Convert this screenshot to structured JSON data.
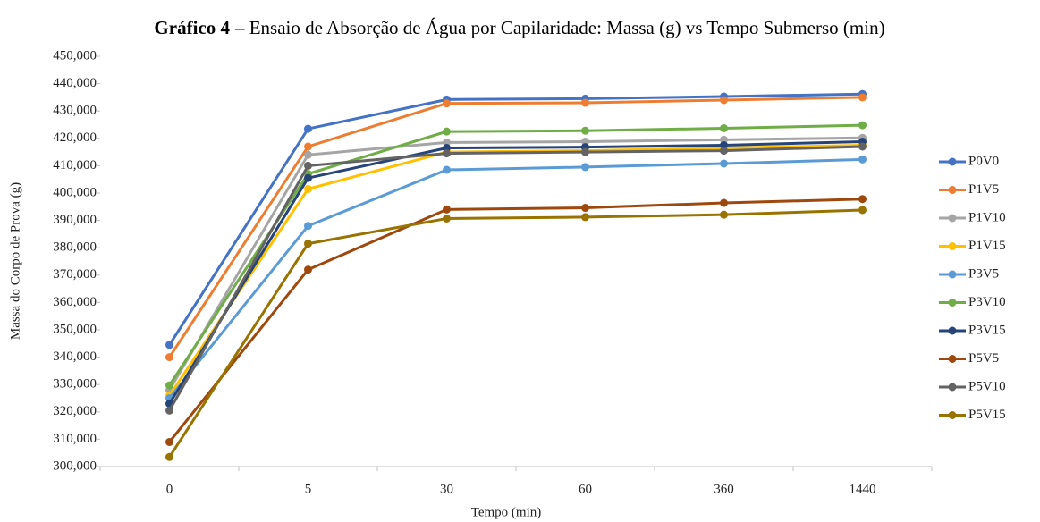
{
  "chart_data": {
    "type": "line",
    "title_number": "Gráfico 4",
    "title": "– Ensaio de Absorção de Água por Capilaridade: Massa (g) vs Tempo Submerso (min)",
    "x_label": "Tempo (min)",
    "y_label": "Massa do Corpo de Prova (g)",
    "categories": [
      "0",
      "5",
      "30",
      "60",
      "360",
      "1440"
    ],
    "ylim": [
      300,
      450
    ],
    "yticks": [
      {
        "value": 300,
        "label": "300,000"
      },
      {
        "value": 310,
        "label": "310,000"
      },
      {
        "value": 320,
        "label": "320,000"
      },
      {
        "value": 330,
        "label": "330,000"
      },
      {
        "value": 340,
        "label": "340,000"
      },
      {
        "value": 350,
        "label": "350,000"
      },
      {
        "value": 360,
        "label": "360,000"
      },
      {
        "value": 370,
        "label": "370,000"
      },
      {
        "value": 380,
        "label": "380,000"
      },
      {
        "value": 390,
        "label": "390,000"
      },
      {
        "value": 400,
        "label": "400,000"
      },
      {
        "value": 410,
        "label": "410,000"
      },
      {
        "value": 420,
        "label": "420,000"
      },
      {
        "value": 430,
        "label": "430,000"
      },
      {
        "value": 440,
        "label": "440,000"
      },
      {
        "value": 450,
        "label": "450,000"
      }
    ],
    "legend": "right",
    "series": [
      {
        "name": "P0V0",
        "color": "#4472c4",
        "values": [
          344.5,
          423.5,
          434.2,
          434.5,
          435.3,
          436.2
        ]
      },
      {
        "name": "P1V5",
        "color": "#ed7d31",
        "values": [
          340,
          417,
          432.8,
          433,
          434,
          435
        ]
      },
      {
        "name": "P1V10",
        "color": "#a5a5a5",
        "values": [
          328,
          414,
          418.5,
          418.8,
          419.5,
          420.2
        ]
      },
      {
        "name": "P1V15",
        "color": "#ffc000",
        "values": [
          326,
          401.5,
          415,
          415.5,
          416.5,
          417.5
        ]
      },
      {
        "name": "P3V5",
        "color": "#5b9bd5",
        "values": [
          325,
          388,
          408.5,
          409.5,
          410.8,
          412.3
        ]
      },
      {
        "name": "P3V10",
        "color": "#70ad47",
        "values": [
          329.7,
          407,
          422.5,
          422.8,
          423.7,
          424.8
        ]
      },
      {
        "name": "P3V15",
        "color": "#264478",
        "values": [
          323,
          405.5,
          416.5,
          416.8,
          417.5,
          418.8
        ]
      },
      {
        "name": "P5V5",
        "color": "#9e480e",
        "values": [
          309,
          372,
          394,
          394.6,
          396.4,
          397.8
        ]
      },
      {
        "name": "P5V10",
        "color": "#636363",
        "values": [
          320.5,
          410,
          414.5,
          415,
          415.5,
          417
        ]
      },
      {
        "name": "P5V15",
        "color": "#997300",
        "values": [
          303.5,
          381.5,
          390.7,
          391.2,
          392.1,
          393.8
        ]
      }
    ]
  }
}
